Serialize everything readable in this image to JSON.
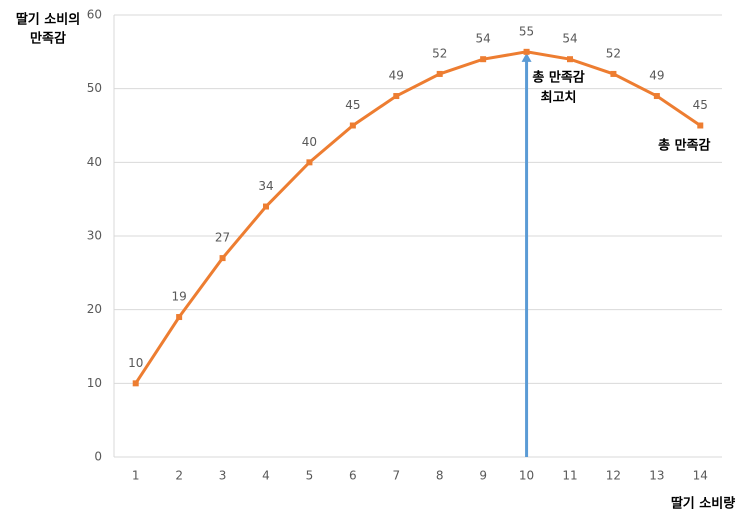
{
  "chart_data": {
    "type": "line",
    "y_label": [
      "딸기 소비의",
      "만족감"
    ],
    "x_label": "딸기 소비량",
    "annotation": [
      "총 만족감",
      "최고치"
    ],
    "categories": [
      "1",
      "2",
      "3",
      "4",
      "5",
      "6",
      "7",
      "8",
      "9",
      "10",
      "11",
      "12",
      "13",
      "14"
    ],
    "series": [
      {
        "name": "총 만족감",
        "color": "#ed7d31",
        "values": [
          10,
          19,
          27,
          34,
          40,
          45,
          49,
          52,
          54,
          55,
          54,
          52,
          49,
          45
        ]
      }
    ],
    "ylim": [
      0,
      60
    ],
    "yticks": [
      0,
      10,
      20,
      30,
      40,
      50,
      60
    ],
    "grid": true,
    "arrow_color": "#5b9bd5"
  }
}
